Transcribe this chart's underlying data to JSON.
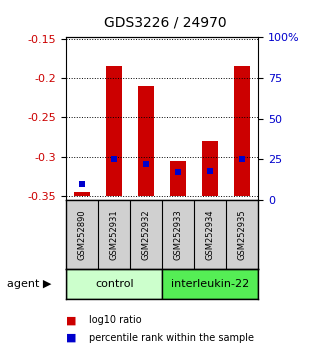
{
  "title": "GDS3226 / 24970",
  "samples": [
    "GSM252890",
    "GSM252931",
    "GSM252932",
    "GSM252933",
    "GSM252934",
    "GSM252935"
  ],
  "log10_ratio": [
    -0.345,
    -0.185,
    -0.21,
    -0.305,
    -0.28,
    -0.185
  ],
  "percentile_rank": [
    10.0,
    25.0,
    22.0,
    17.0,
    18.0,
    25.0
  ],
  "bar_bottom": -0.35,
  "ylim_left": [
    -0.355,
    -0.148
  ],
  "ylim_right": [
    0,
    100
  ],
  "yticks_left": [
    -0.35,
    -0.3,
    -0.25,
    -0.2,
    -0.15
  ],
  "ytick_labels_left": [
    "-0.35",
    "-0.3",
    "-0.25",
    "-0.2",
    "-0.15"
  ],
  "yticks_right": [
    0,
    25,
    50,
    75,
    100
  ],
  "ytick_labels_right": [
    "0",
    "25",
    "50",
    "75",
    "100%"
  ],
  "group_colors": [
    "#ccffcc",
    "#55ee55"
  ],
  "group_labels": [
    "control",
    "interleukin-22"
  ],
  "bar_color": "#cc0000",
  "blue_color": "#0000cc",
  "agent_label": "agent",
  "legend_red": "log10 ratio",
  "legend_blue": "percentile rank within the sample",
  "title_fontsize": 10,
  "tick_fontsize": 8,
  "axis_color_left": "#cc0000",
  "axis_color_right": "#0000cc",
  "sample_label_fontsize": 6,
  "group_label_fontsize": 8
}
